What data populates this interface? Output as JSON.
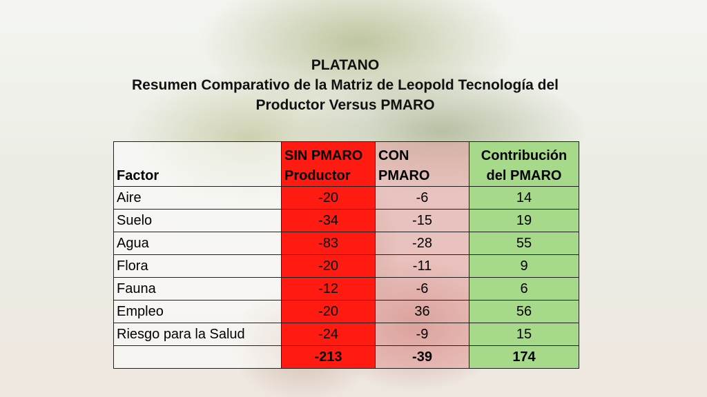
{
  "title": {
    "line1": "PLATANO",
    "line2": "Resumen Comparativo de la Matriz de Leopold Tecnología del",
    "line3": "Productor Versus PMARO"
  },
  "table": {
    "headers": {
      "factor": "Factor",
      "sin_line1": "SIN PMARO",
      "sin_line2": "Productor",
      "con_line1": "CON",
      "con_line2": "PMARO",
      "contrib_line1": "Contribución",
      "contrib_line2": "del PMARO"
    },
    "rows": [
      {
        "factor": "Aire",
        "sin": "-20",
        "con": "-6",
        "contrib": "14"
      },
      {
        "factor": "Suelo",
        "sin": "-34",
        "con": "-15",
        "contrib": "19"
      },
      {
        "factor": "Agua",
        "sin": "-83",
        "con": "-28",
        "contrib": "55"
      },
      {
        "factor": "Flora",
        "sin": "-20",
        "con": "-11",
        "contrib": "9"
      },
      {
        "factor": "Fauna",
        "sin": "-12",
        "con": "-6",
        "contrib": "6"
      },
      {
        "factor": "Empleo",
        "sin": "-20",
        "con": "36",
        "contrib": "56"
      },
      {
        "factor": "Riesgo para la Salud",
        "sin": "-24",
        "con": "-9",
        "contrib": "15"
      }
    ],
    "total": {
      "factor": "",
      "sin": "-213",
      "con": "-39",
      "contrib": "174"
    }
  },
  "colors": {
    "sin_column": "#ff1a12",
    "con_column": "#e6a0a0",
    "contrib_column": "#a6d98a"
  }
}
